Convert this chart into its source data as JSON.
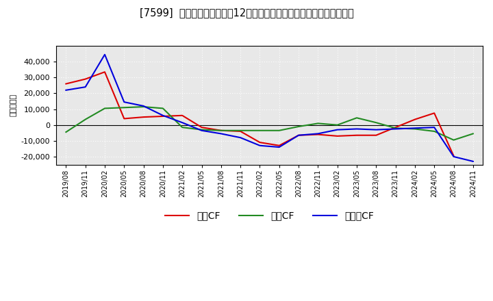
{
  "title": "[7599]  キャッシュフローの12か月移動合計の対前年同期増減額の推移",
  "ylabel": "（百万円）",
  "background_color": "#ffffff",
  "plot_bg_color": "#e8e8e8",
  "x_labels": [
    "2019/08",
    "2019/11",
    "2020/02",
    "2020/05",
    "2020/08",
    "2020/11",
    "2021/02",
    "2021/05",
    "2021/08",
    "2021/11",
    "2022/02",
    "2022/05",
    "2022/08",
    "2022/11",
    "2023/02",
    "2023/05",
    "2023/08",
    "2023/11",
    "2024/02",
    "2024/05",
    "2024/08",
    "2024/11"
  ],
  "series_order": [
    "営業CF",
    "投資CF",
    "フリーCF"
  ],
  "series": {
    "営業CF": {
      "color": "#dd0000",
      "values": [
        26000,
        29000,
        33500,
        4000,
        5000,
        5500,
        6000,
        -1500,
        -3500,
        -4000,
        -11000,
        -13000,
        -6500,
        -6000,
        -7000,
        -6500,
        -6500,
        -1500,
        3500,
        7500,
        -19500,
        null
      ]
    },
    "投資CF": {
      "color": "#228B22",
      "values": [
        -4500,
        3500,
        10500,
        11000,
        11500,
        10500,
        -1500,
        -3000,
        -3500,
        -3500,
        -3500,
        -3500,
        -1000,
        1000,
        0,
        4500,
        1500,
        -2000,
        -2500,
        -4000,
        -9500,
        -5500
      ]
    },
    "フリーCF": {
      "color": "#0000dd",
      "values": [
        22000,
        24000,
        44500,
        14500,
        12000,
        6000,
        1500,
        -3500,
        -5500,
        -8000,
        -13000,
        -14000,
        -6500,
        -5500,
        -3000,
        -2500,
        -3000,
        -2500,
        -2000,
        -1500,
        -20000,
        -23000
      ]
    }
  },
  "ylim": [
    -25000,
    50000
  ],
  "yticks": [
    -20000,
    -10000,
    0,
    10000,
    20000,
    30000,
    40000
  ],
  "legend_labels": [
    "営業CF",
    "投資CF",
    "フリーCF"
  ],
  "legend_colors": [
    "#dd0000",
    "#228B22",
    "#0000dd"
  ]
}
